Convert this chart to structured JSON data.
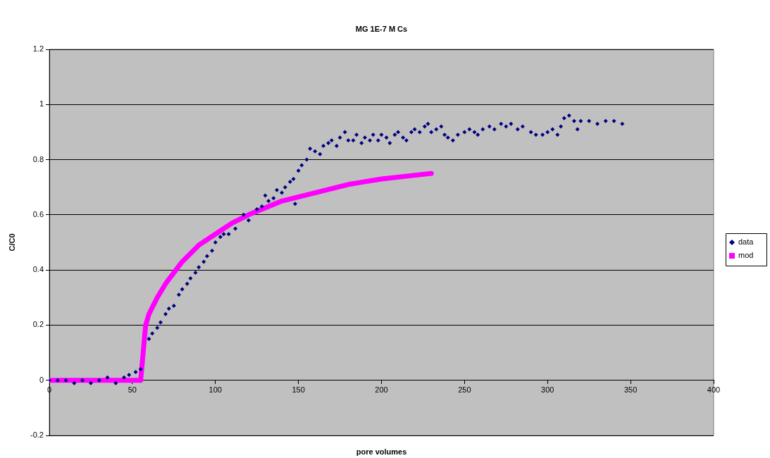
{
  "chart_data": {
    "type": "scatter",
    "title": "MG 1E-7 M Cs",
    "xlabel": "pore volumes",
    "ylabel": "C/C0",
    "xlim": [
      0,
      400
    ],
    "xticks": [
      0,
      50,
      100,
      150,
      200,
      250,
      300,
      350,
      400
    ],
    "ylim": [
      -0.2,
      1.2
    ],
    "yticks": [
      -0.2,
      0,
      0.2,
      0.4,
      0.6,
      0.8,
      1,
      1.2
    ],
    "grid": "y",
    "legend": "right",
    "series": [
      {
        "name": "data",
        "marker": "diamond",
        "color": "#000080",
        "x": [
          0,
          5,
          10,
          15,
          20,
          25,
          30,
          35,
          40,
          45,
          48,
          52,
          55,
          60,
          62,
          65,
          67,
          70,
          72,
          75,
          78,
          80,
          83,
          85,
          88,
          90,
          93,
          95,
          98,
          100,
          103,
          105,
          108,
          112,
          117,
          120,
          125,
          128,
          130,
          132,
          135,
          137,
          140,
          142,
          145,
          147,
          148,
          150,
          152,
          155,
          157,
          160,
          163,
          165,
          168,
          170,
          173,
          175,
          178,
          180,
          183,
          185,
          188,
          190,
          193,
          195,
          198,
          200,
          203,
          205,
          208,
          210,
          213,
          215,
          218,
          220,
          223,
          226,
          228,
          230,
          233,
          236,
          238,
          240,
          243,
          246,
          250,
          253,
          256,
          258,
          261,
          265,
          268,
          272,
          275,
          278,
          282,
          285,
          290,
          293,
          297,
          300,
          303,
          306,
          308,
          310,
          313,
          316,
          318,
          320,
          325,
          330,
          335,
          340,
          345
        ],
        "values": [
          0,
          0,
          0,
          -0.01,
          0,
          -0.01,
          0,
          0.01,
          -0.01,
          0.01,
          0.02,
          0.03,
          0.04,
          0.15,
          0.17,
          0.19,
          0.21,
          0.24,
          0.26,
          0.27,
          0.31,
          0.33,
          0.35,
          0.37,
          0.39,
          0.41,
          0.43,
          0.45,
          0.47,
          0.5,
          0.52,
          0.53,
          0.53,
          0.55,
          0.6,
          0.58,
          0.62,
          0.63,
          0.67,
          0.65,
          0.66,
          0.69,
          0.68,
          0.7,
          0.72,
          0.73,
          0.64,
          0.76,
          0.78,
          0.8,
          0.84,
          0.83,
          0.82,
          0.85,
          0.86,
          0.87,
          0.85,
          0.88,
          0.9,
          0.87,
          0.87,
          0.89,
          0.86,
          0.88,
          0.87,
          0.89,
          0.87,
          0.89,
          0.88,
          0.86,
          0.89,
          0.9,
          0.88,
          0.87,
          0.9,
          0.91,
          0.9,
          0.92,
          0.93,
          0.9,
          0.91,
          0.92,
          0.89,
          0.88,
          0.87,
          0.89,
          0.9,
          0.91,
          0.9,
          0.89,
          0.91,
          0.92,
          0.91,
          0.93,
          0.92,
          0.93,
          0.91,
          0.92,
          0.9,
          0.89,
          0.89,
          0.9,
          0.91,
          0.89,
          0.92,
          0.95,
          0.96,
          0.94,
          0.91,
          0.94,
          0.94,
          0.93,
          0.94,
          0.94,
          0.93
        ]
      },
      {
        "name": "mod",
        "type": "line",
        "marker": "square",
        "color": "#ff00ff",
        "x": [
          0,
          20,
          40,
          55,
          58,
          60,
          65,
          70,
          80,
          90,
          100,
          110,
          120,
          140,
          160,
          180,
          200,
          230
        ],
        "values": [
          0,
          0,
          0,
          0,
          0.2,
          0.24,
          0.3,
          0.35,
          0.43,
          0.49,
          0.53,
          0.57,
          0.6,
          0.65,
          0.68,
          0.71,
          0.73,
          0.75
        ]
      }
    ]
  }
}
